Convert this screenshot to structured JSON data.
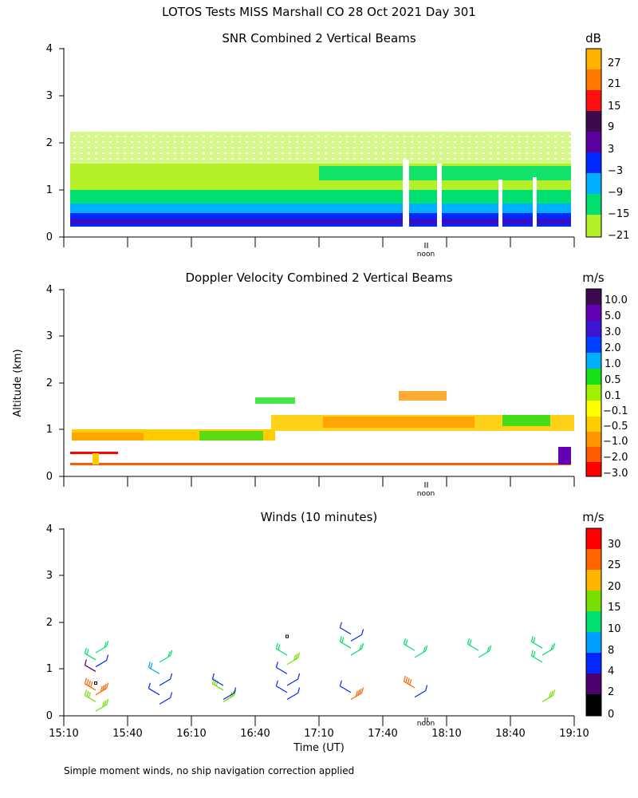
{
  "title": "LOTOS Tests MISS Marshall CO  28 Oct 2021 Day 301",
  "footnote": "Simple moment winds, no ship navigation correction applied",
  "chart_data": [
    {
      "type": "heatmap",
      "title": "SNR Combined 2 Vertical Beams",
      "ylabel": "",
      "xlabel": "",
      "ylim": [
        0,
        4
      ],
      "yticks": [
        "0",
        "1",
        "2",
        "3",
        "4"
      ],
      "noon_label": "noon",
      "colorbar": {
        "unit": "dB",
        "labels": [
          "27",
          "21",
          "15",
          "9",
          "3",
          "−3",
          "−9",
          "−15",
          "−21"
        ],
        "colors": [
          "#ffb000",
          "#ff7800",
          "#ff1010",
          "#3c0a4e",
          "#5a00a0",
          "#0028ff",
          "#00b0ff",
          "#00e070",
          "#b4f028"
        ]
      },
      "layers_km": [
        {
          "level": "−15 to −3 dB (strong)",
          "bottom": 0.2,
          "top": 0.6
        },
        {
          "level": "−15 dB",
          "bottom": 0.6,
          "top": 0.9
        },
        {
          "level": "−21 dB",
          "bottom": 0.9,
          "top": 2.0
        }
      ]
    },
    {
      "type": "heatmap",
      "title": "Doppler Velocity Combined 2 Vertical Beams",
      "ylabel": "Altitude (km)",
      "ylim": [
        0,
        4
      ],
      "yticks": [
        "0",
        "1",
        "2",
        "3",
        "4"
      ],
      "noon_label": "noon",
      "colorbar": {
        "unit": "m/s",
        "labels": [
          "10.0",
          "5.0",
          "3.0",
          "2.0",
          "1.0",
          "0.5",
          "0.1",
          "−0.1",
          "−0.5",
          "−1.0",
          "−2.0",
          "−3.0"
        ],
        "colors": [
          "#3c0a4e",
          "#6400b4",
          "#3c14d2",
          "#0040ff",
          "#00b0ff",
          "#18e018",
          "#a0f000",
          "#ffff00",
          "#ffcc00",
          "#ff9600",
          "#ff5a00",
          "#ff0000"
        ]
      }
    },
    {
      "type": "wind_barbs",
      "title": "Winds (10 minutes)",
      "xlabel": "Time (UT)",
      "ylim": [
        0,
        4
      ],
      "yticks": [
        "0",
        "1",
        "2",
        "3",
        "4"
      ],
      "xticks": [
        "15:10",
        "15:40",
        "16:10",
        "16:40",
        "17:10",
        "17:40",
        "18:10",
        "18:40",
        "19:10"
      ],
      "noon_label": "noon",
      "colorbar": {
        "unit": "m/s",
        "labels": [
          "30",
          "25",
          "20",
          "15",
          "10",
          "8",
          "4",
          "2",
          "0"
        ],
        "colors": [
          "#ff0000",
          "#ff6400",
          "#ffb400",
          "#78e000",
          "#00e070",
          "#00a0ff",
          "#0028ff",
          "#4c0070",
          "#000000"
        ]
      },
      "profiles": [
        {
          "time": "15:25",
          "winds": [
            {
              "alt": 0.1,
              "speed": 15
            },
            {
              "alt": 0.3,
              "speed": 15
            },
            {
              "alt": 0.45,
              "speed": 25
            },
            {
              "alt": 0.55,
              "speed": 25
            },
            {
              "alt": 0.7,
              "speed": 0
            },
            {
              "alt": 0.95,
              "speed": 2
            },
            {
              "alt": 1.05,
              "speed": 4
            },
            {
              "alt": 1.2,
              "speed": 10
            },
            {
              "alt": 1.35,
              "speed": 10
            }
          ]
        },
        {
          "time": "15:55",
          "winds": [
            {
              "alt": 0.25,
              "speed": 4
            },
            {
              "alt": 0.45,
              "speed": 4
            },
            {
              "alt": 0.65,
              "speed": 4
            },
            {
              "alt": 0.9,
              "speed": 8
            },
            {
              "alt": 1.15,
              "speed": 10
            }
          ]
        },
        {
          "time": "16:25",
          "winds": [
            {
              "alt": 0.3,
              "speed": 15
            },
            {
              "alt": 0.55,
              "speed": 15
            },
            {
              "alt": 0.35,
              "speed": 4
            },
            {
              "alt": 0.65,
              "speed": 4
            }
          ]
        },
        {
          "time": "16:55",
          "winds": [
            {
              "alt": 0.35,
              "speed": 4
            },
            {
              "alt": 0.5,
              "speed": 4
            },
            {
              "alt": 0.65,
              "speed": 4
            },
            {
              "alt": 0.9,
              "speed": 4
            },
            {
              "alt": 1.1,
              "speed": 15
            },
            {
              "alt": 1.3,
              "speed": 10
            },
            {
              "alt": 1.7,
              "speed": 0
            }
          ]
        },
        {
          "time": "17:25",
          "winds": [
            {
              "alt": 0.35,
              "speed": 25
            },
            {
              "alt": 0.5,
              "speed": 4
            },
            {
              "alt": 1.3,
              "speed": 10
            },
            {
              "alt": 1.45,
              "speed": 10
            },
            {
              "alt": 1.6,
              "speed": 4
            },
            {
              "alt": 1.75,
              "speed": 4
            }
          ]
        },
        {
          "time": "17:55",
          "winds": [
            {
              "alt": 0.4,
              "speed": 4
            },
            {
              "alt": 0.6,
              "speed": 25
            },
            {
              "alt": 1.25,
              "speed": 10
            },
            {
              "alt": 1.4,
              "speed": 10
            }
          ]
        },
        {
          "time": "18:25",
          "winds": [
            {
              "alt": 1.25,
              "speed": 10
            },
            {
              "alt": 1.4,
              "speed": 10
            }
          ]
        },
        {
          "time": "18:55",
          "winds": [
            {
              "alt": 0.3,
              "speed": 15
            },
            {
              "alt": 1.15,
              "speed": 10
            },
            {
              "alt": 1.3,
              "speed": 10
            },
            {
              "alt": 1.45,
              "speed": 10
            }
          ]
        }
      ]
    }
  ]
}
